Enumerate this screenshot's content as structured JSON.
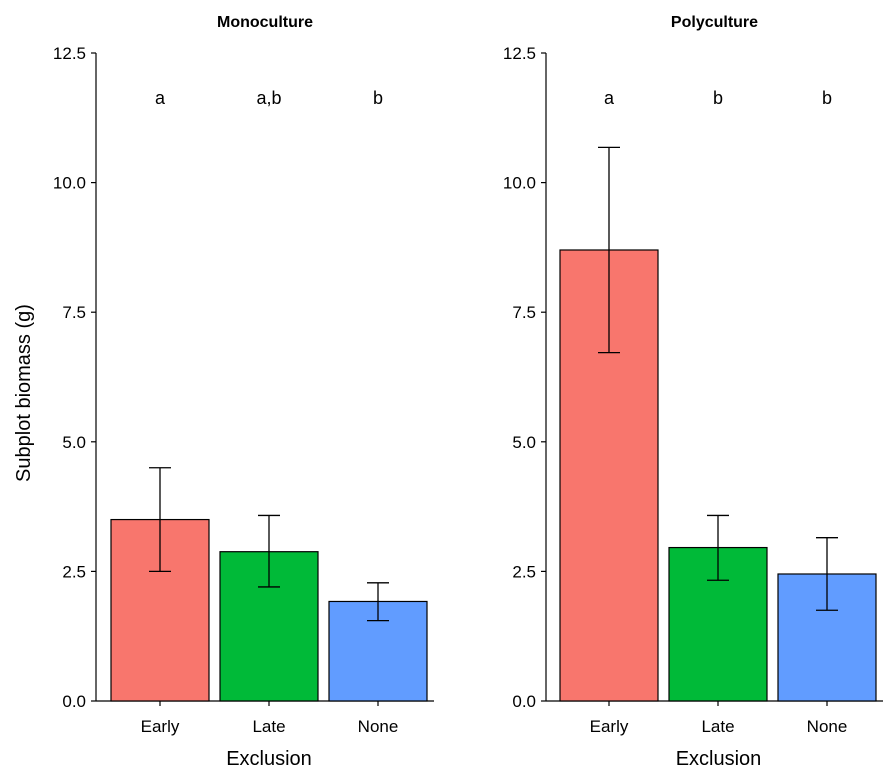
{
  "y_axis_label": "Subplot biomass (g)",
  "chart_data": [
    {
      "type": "bar",
      "title": "Monoculture",
      "xlabel": "Exclusion",
      "ylabel": "Subplot biomass (g)",
      "ylim": [
        0,
        12.5
      ],
      "yticks": [
        "0.0",
        "2.5",
        "5.0",
        "7.5",
        "10.0",
        "12.5"
      ],
      "categories": [
        "Early",
        "Late",
        "None"
      ],
      "values": [
        3.5,
        2.88,
        1.92
      ],
      "error_low": [
        2.5,
        2.2,
        1.55
      ],
      "error_high": [
        4.5,
        3.58,
        2.28
      ],
      "significance": [
        "a",
        "a,b",
        "b"
      ],
      "colors": [
        "#F8766D",
        "#00BA38",
        "#619CFF"
      ]
    },
    {
      "type": "bar",
      "title": "Polyculture",
      "xlabel": "Exclusion",
      "ylabel": "",
      "ylim": [
        0,
        12.5
      ],
      "yticks": [
        "0.0",
        "2.5",
        "5.0",
        "7.5",
        "10.0",
        "12.5"
      ],
      "categories": [
        "Early",
        "Late",
        "None"
      ],
      "values": [
        8.7,
        2.96,
        2.45
      ],
      "error_low": [
        6.72,
        2.33,
        1.75
      ],
      "error_high": [
        10.68,
        3.58,
        3.15
      ],
      "significance": [
        "a",
        "b",
        "b"
      ],
      "colors": [
        "#F8766D",
        "#00BA38",
        "#619CFF"
      ]
    }
  ]
}
